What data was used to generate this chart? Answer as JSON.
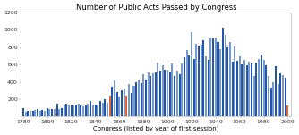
{
  "title": "Number of Public Acts Passed by Congress",
  "xlabel": "Congress (listed by year of first session)",
  "ylabel": "",
  "xlim": [
    1787,
    2012
  ],
  "ylim": [
    0,
    1200
  ],
  "yticks": [
    200,
    400,
    600,
    800,
    1000,
    1200
  ],
  "xticks": [
    1789,
    1809,
    1829,
    1849,
    1869,
    1889,
    1909,
    1929,
    1949,
    1969,
    1989,
    2009
  ],
  "bar_width": 1.5,
  "background_color": "#ffffff",
  "congress_data": [
    {
      "year": 1789,
      "acts": 94,
      "color": "dark"
    },
    {
      "year": 1791,
      "acts": 57,
      "color": "light"
    },
    {
      "year": 1793,
      "acts": 64,
      "color": "dark"
    },
    {
      "year": 1795,
      "acts": 71,
      "color": "light"
    },
    {
      "year": 1797,
      "acts": 68,
      "color": "dark"
    },
    {
      "year": 1799,
      "acts": 82,
      "color": "light"
    },
    {
      "year": 1801,
      "acts": 90,
      "color": "dark"
    },
    {
      "year": 1803,
      "acts": 70,
      "color": "light"
    },
    {
      "year": 1805,
      "acts": 80,
      "color": "dark"
    },
    {
      "year": 1807,
      "acts": 64,
      "color": "light"
    },
    {
      "year": 1809,
      "acts": 95,
      "color": "dark"
    },
    {
      "year": 1811,
      "acts": 87,
      "color": "light"
    },
    {
      "year": 1813,
      "acts": 90,
      "color": "dark"
    },
    {
      "year": 1815,
      "acts": 83,
      "color": "light"
    },
    {
      "year": 1817,
      "acts": 152,
      "color": "dark"
    },
    {
      "year": 1819,
      "acts": 92,
      "color": "light"
    },
    {
      "year": 1821,
      "acts": 100,
      "color": "dark"
    },
    {
      "year": 1823,
      "acts": 135,
      "color": "light"
    },
    {
      "year": 1825,
      "acts": 148,
      "color": "dark"
    },
    {
      "year": 1827,
      "acts": 128,
      "color": "light"
    },
    {
      "year": 1829,
      "acts": 124,
      "color": "dark"
    },
    {
      "year": 1831,
      "acts": 130,
      "color": "light"
    },
    {
      "year": 1833,
      "acts": 140,
      "color": "dark"
    },
    {
      "year": 1835,
      "acts": 144,
      "color": "light"
    },
    {
      "year": 1837,
      "acts": 128,
      "color": "dark"
    },
    {
      "year": 1839,
      "acts": 120,
      "color": "light"
    },
    {
      "year": 1841,
      "acts": 133,
      "color": "dark"
    },
    {
      "year": 1843,
      "acts": 148,
      "color": "light"
    },
    {
      "year": 1845,
      "acts": 175,
      "color": "dark"
    },
    {
      "year": 1847,
      "acts": 138,
      "color": "light"
    },
    {
      "year": 1849,
      "acts": 140,
      "color": "dark"
    },
    {
      "year": 1851,
      "acts": 138,
      "color": "light"
    },
    {
      "year": 1853,
      "acts": 182,
      "color": "dark"
    },
    {
      "year": 1855,
      "acts": 158,
      "color": "light"
    },
    {
      "year": 1857,
      "acts": 200,
      "color": "dark"
    },
    {
      "year": 1859,
      "acts": 156,
      "color": "light"
    },
    {
      "year": 1861,
      "acts": 245,
      "color": "orange"
    },
    {
      "year": 1863,
      "acts": 348,
      "color": "dark"
    },
    {
      "year": 1865,
      "acts": 418,
      "color": "light"
    },
    {
      "year": 1867,
      "acts": 280,
      "color": "dark"
    },
    {
      "year": 1869,
      "acts": 235,
      "color": "light"
    },
    {
      "year": 1871,
      "acts": 300,
      "color": "dark"
    },
    {
      "year": 1873,
      "acts": 328,
      "color": "light"
    },
    {
      "year": 1875,
      "acts": 246,
      "color": "orange"
    },
    {
      "year": 1877,
      "acts": 380,
      "color": "light"
    },
    {
      "year": 1879,
      "acts": 268,
      "color": "dark"
    },
    {
      "year": 1881,
      "acts": 350,
      "color": "light"
    },
    {
      "year": 1883,
      "acts": 400,
      "color": "dark"
    },
    {
      "year": 1885,
      "acts": 425,
      "color": "light"
    },
    {
      "year": 1887,
      "acts": 390,
      "color": "dark"
    },
    {
      "year": 1889,
      "acts": 486,
      "color": "light"
    },
    {
      "year": 1891,
      "acts": 432,
      "color": "dark"
    },
    {
      "year": 1893,
      "acts": 510,
      "color": "light"
    },
    {
      "year": 1895,
      "acts": 465,
      "color": "dark"
    },
    {
      "year": 1897,
      "acts": 500,
      "color": "light"
    },
    {
      "year": 1899,
      "acts": 510,
      "color": "dark"
    },
    {
      "year": 1901,
      "acts": 618,
      "color": "light"
    },
    {
      "year": 1903,
      "acts": 528,
      "color": "dark"
    },
    {
      "year": 1905,
      "acts": 588,
      "color": "light"
    },
    {
      "year": 1907,
      "acts": 538,
      "color": "dark"
    },
    {
      "year": 1909,
      "acts": 540,
      "color": "light"
    },
    {
      "year": 1911,
      "acts": 520,
      "color": "dark"
    },
    {
      "year": 1913,
      "acts": 615,
      "color": "light"
    },
    {
      "year": 1915,
      "acts": 468,
      "color": "dark"
    },
    {
      "year": 1917,
      "acts": 528,
      "color": "light"
    },
    {
      "year": 1919,
      "acts": 488,
      "color": "dark"
    },
    {
      "year": 1921,
      "acts": 612,
      "color": "light"
    },
    {
      "year": 1923,
      "acts": 685,
      "color": "dark"
    },
    {
      "year": 1925,
      "acts": 762,
      "color": "light"
    },
    {
      "year": 1927,
      "acts": 700,
      "color": "dark"
    },
    {
      "year": 1929,
      "acts": 978,
      "color": "light"
    },
    {
      "year": 1931,
      "acts": 660,
      "color": "dark"
    },
    {
      "year": 1933,
      "acts": 840,
      "color": "light"
    },
    {
      "year": 1935,
      "acts": 820,
      "color": "dark"
    },
    {
      "year": 1937,
      "acts": 830,
      "color": "light"
    },
    {
      "year": 1939,
      "acts": 878,
      "color": "dark"
    },
    {
      "year": 1941,
      "acts": 690,
      "color": "light"
    },
    {
      "year": 1943,
      "acts": 658,
      "color": "dark"
    },
    {
      "year": 1945,
      "acts": 898,
      "color": "light"
    },
    {
      "year": 1947,
      "acts": 898,
      "color": "dark"
    },
    {
      "year": 1949,
      "acts": 912,
      "color": "light"
    },
    {
      "year": 1951,
      "acts": 858,
      "color": "dark"
    },
    {
      "year": 1953,
      "acts": 782,
      "color": "light"
    },
    {
      "year": 1955,
      "acts": 1028,
      "color": "dark"
    },
    {
      "year": 1957,
      "acts": 938,
      "color": "light"
    },
    {
      "year": 1959,
      "acts": 802,
      "color": "dark"
    },
    {
      "year": 1961,
      "acts": 858,
      "color": "light"
    },
    {
      "year": 1963,
      "acts": 638,
      "color": "dark"
    },
    {
      "year": 1965,
      "acts": 810,
      "color": "light"
    },
    {
      "year": 1967,
      "acts": 640,
      "color": "dark"
    },
    {
      "year": 1969,
      "acts": 695,
      "color": "light"
    },
    {
      "year": 1971,
      "acts": 607,
      "color": "dark"
    },
    {
      "year": 1973,
      "acts": 649,
      "color": "light"
    },
    {
      "year": 1975,
      "acts": 590,
      "color": "dark"
    },
    {
      "year": 1977,
      "acts": 634,
      "color": "light"
    },
    {
      "year": 1979,
      "acts": 613,
      "color": "dark"
    },
    {
      "year": 1981,
      "acts": 473,
      "color": "light"
    },
    {
      "year": 1983,
      "acts": 623,
      "color": "dark"
    },
    {
      "year": 1985,
      "acts": 664,
      "color": "light"
    },
    {
      "year": 1987,
      "acts": 713,
      "color": "dark"
    },
    {
      "year": 1989,
      "acts": 650,
      "color": "light"
    },
    {
      "year": 1991,
      "acts": 590,
      "color": "dark"
    },
    {
      "year": 1993,
      "acts": 465,
      "color": "light"
    },
    {
      "year": 1995,
      "acts": 333,
      "color": "dark"
    },
    {
      "year": 1997,
      "acts": 394,
      "color": "light"
    },
    {
      "year": 1999,
      "acts": 580,
      "color": "dark"
    },
    {
      "year": 2001,
      "acts": 377,
      "color": "light"
    },
    {
      "year": 2003,
      "acts": 498,
      "color": "dark"
    },
    {
      "year": 2005,
      "acts": 482,
      "color": "light"
    },
    {
      "year": 2007,
      "acts": 449,
      "color": "dark"
    },
    {
      "year": 2009,
      "acts": 125,
      "color": "orange"
    }
  ],
  "bar_color_dark": "#2255aa",
  "bar_color_light": "#7799cc",
  "highlight_color": "#dd6633",
  "title_fontsize": 6,
  "xlabel_fontsize": 5,
  "tick_fontsize": 4.5,
  "border_color": "#aaaaaa"
}
